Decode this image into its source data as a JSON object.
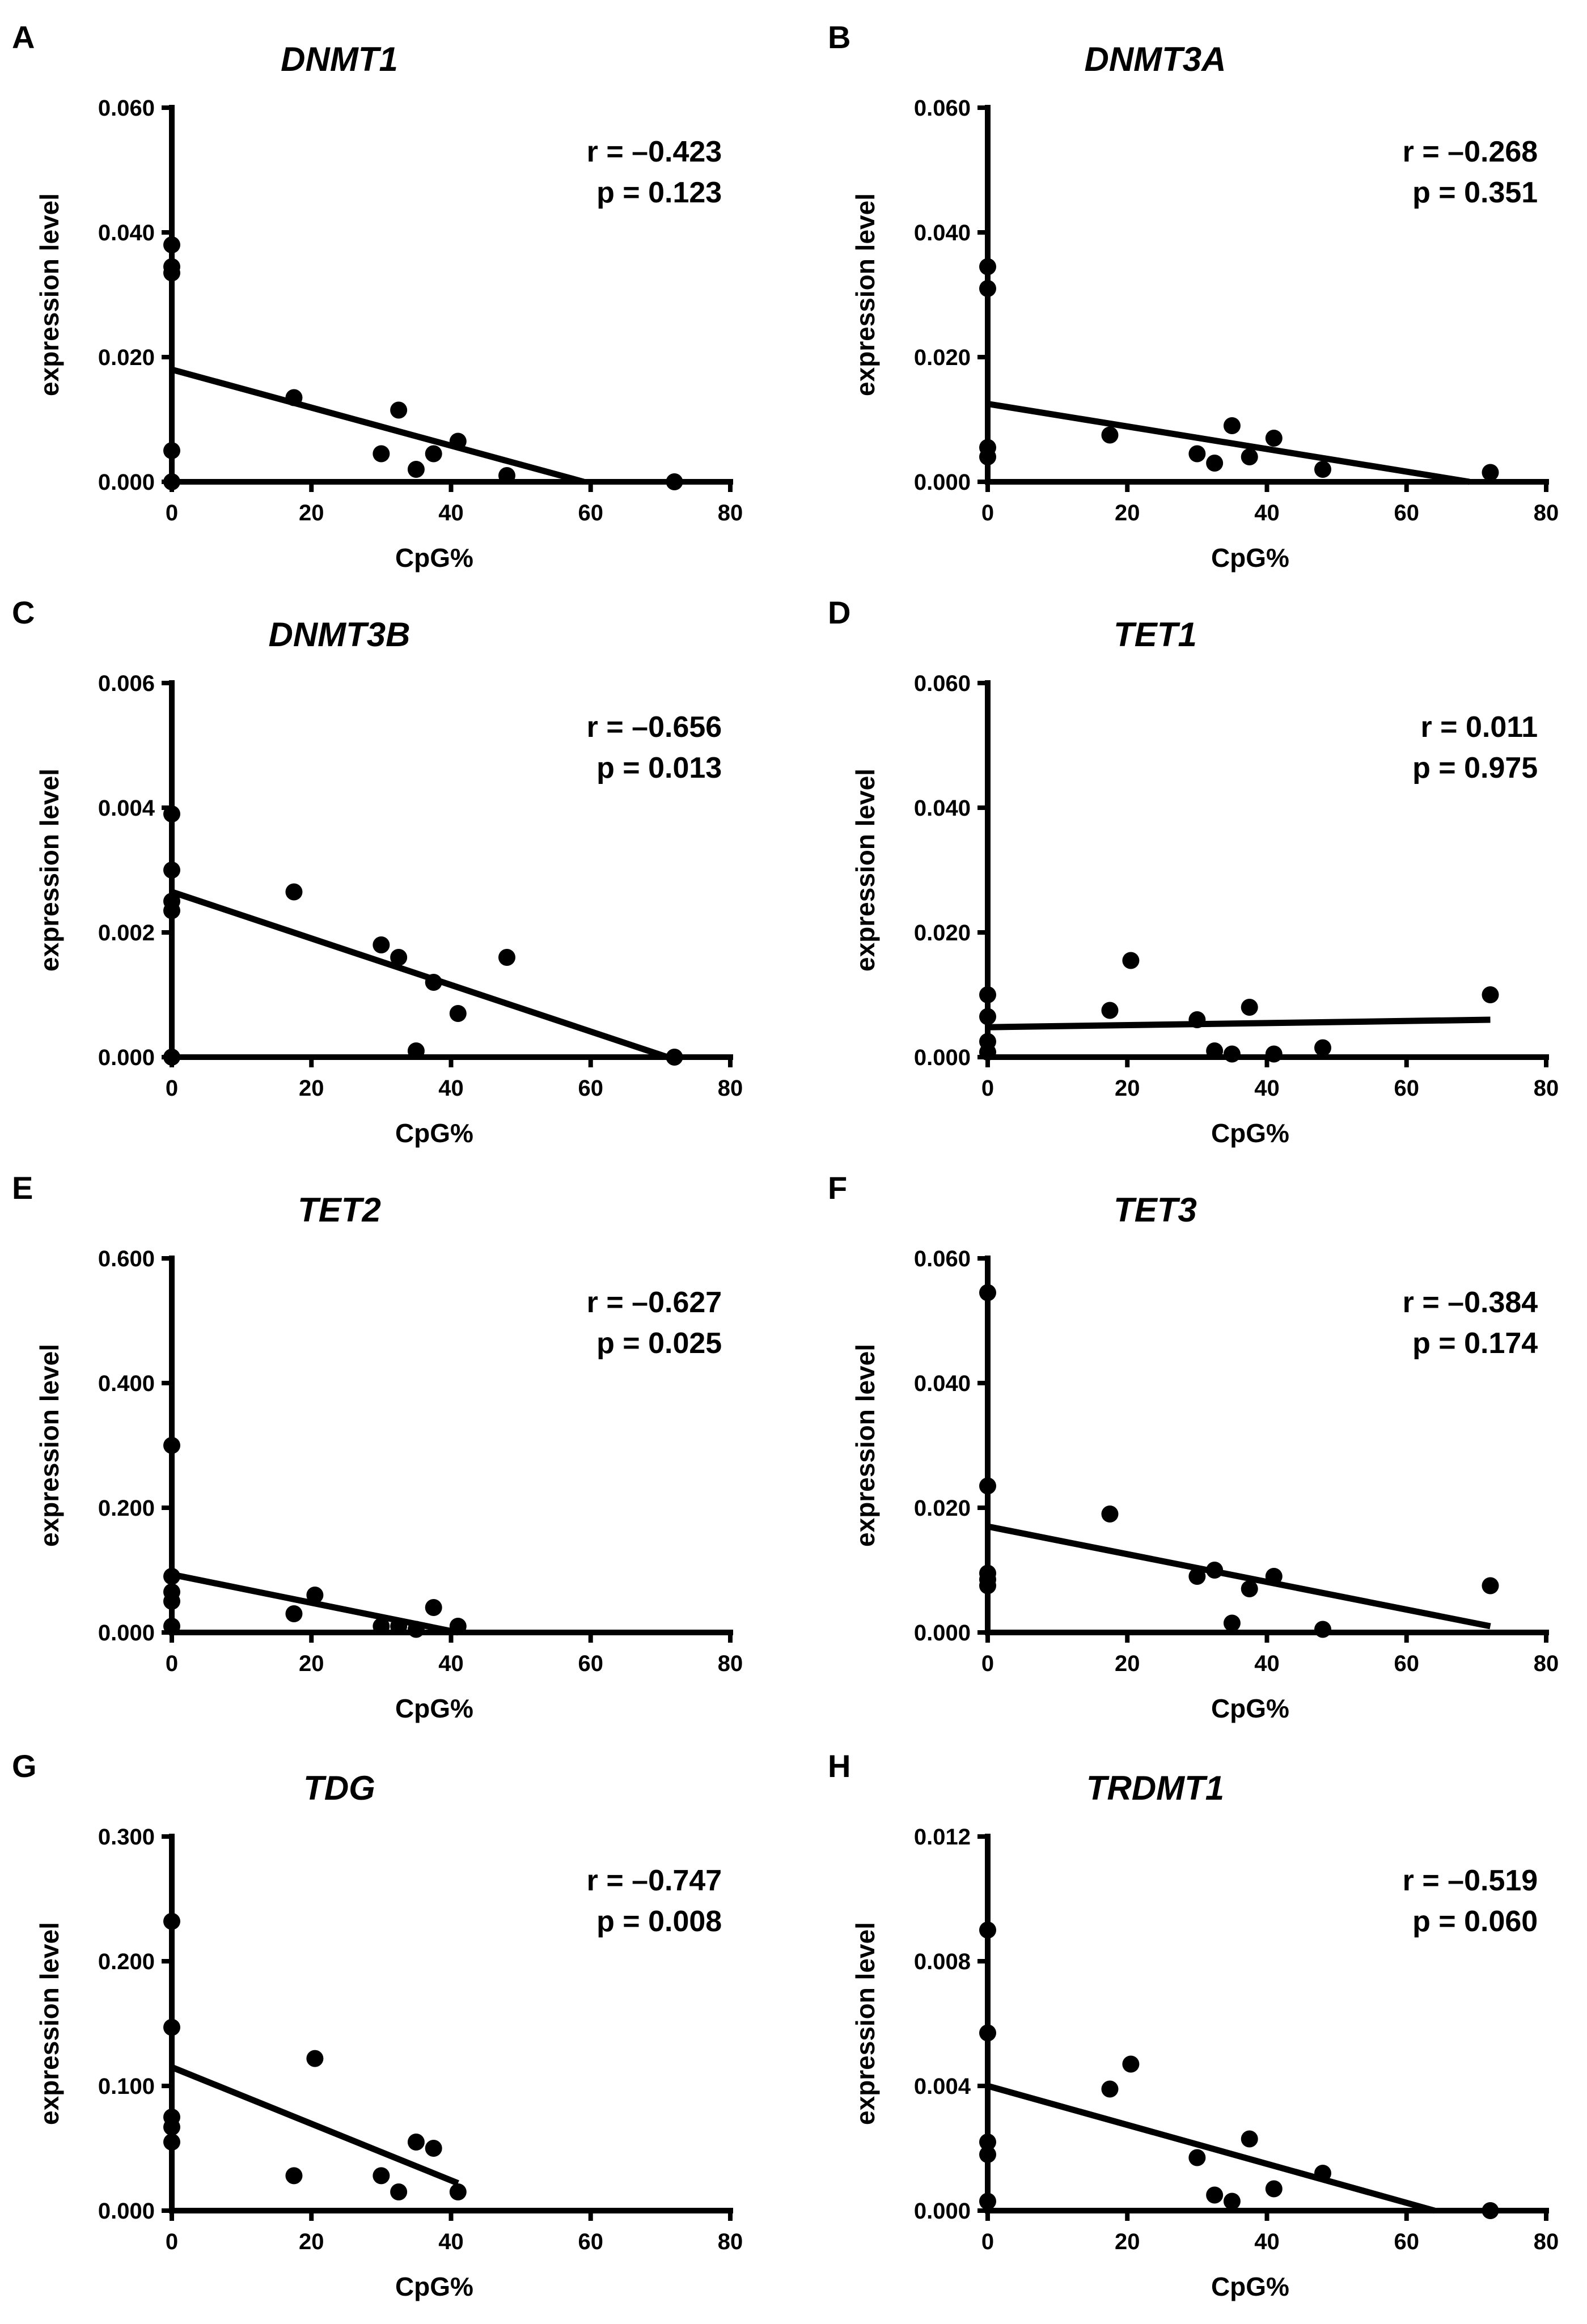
{
  "figure": {
    "panel_count": 8
  },
  "chart_data": [
    {
      "type": "scatter",
      "panel": "A",
      "title": "DNMT1",
      "xlabel": "CpG%",
      "ylabel": "expression level",
      "xlim": [
        0,
        80
      ],
      "ylim": [
        0,
        0.06
      ],
      "xticks": [
        "0",
        "20",
        "40",
        "60",
        "80"
      ],
      "yticks": [
        "0.000",
        "0.020",
        "0.040",
        "0.060"
      ],
      "r_text": "r = –0.423",
      "p_text": "p = 0.123",
      "points": [
        [
          0,
          0.038
        ],
        [
          0,
          0.0345
        ],
        [
          0,
          0.0335
        ],
        [
          0,
          0.005
        ],
        [
          0,
          0.0
        ],
        [
          17.5,
          0.0135
        ],
        [
          30,
          0.0045
        ],
        [
          32.5,
          0.0115
        ],
        [
          35,
          0.002
        ],
        [
          37.5,
          0.0045
        ],
        [
          41,
          0.0065
        ],
        [
          48,
          0.001
        ],
        [
          72,
          0.0
        ]
      ],
      "fit_line": [
        [
          0,
          0.018
        ],
        [
          59,
          0.0
        ]
      ]
    },
    {
      "type": "scatter",
      "panel": "B",
      "title": "DNMT3A",
      "xlabel": "CpG%",
      "ylabel": "expression level",
      "xlim": [
        0,
        80
      ],
      "ylim": [
        0,
        0.06
      ],
      "xticks": [
        "0",
        "20",
        "40",
        "60",
        "80"
      ],
      "yticks": [
        "0.000",
        "0.020",
        "0.040",
        "0.060"
      ],
      "r_text": "r = –0.268",
      "p_text": "p = 0.351",
      "points": [
        [
          0,
          0.0345
        ],
        [
          0,
          0.031
        ],
        [
          0,
          0.0055
        ],
        [
          0,
          0.004
        ],
        [
          17.5,
          0.0075
        ],
        [
          30,
          0.0045
        ],
        [
          32.5,
          0.003
        ],
        [
          35,
          0.009
        ],
        [
          37.5,
          0.004
        ],
        [
          41,
          0.007
        ],
        [
          48,
          0.002
        ],
        [
          72,
          0.0015
        ]
      ],
      "fit_line": [
        [
          0,
          0.0125
        ],
        [
          69,
          0.0
        ]
      ]
    },
    {
      "type": "scatter",
      "panel": "C",
      "title": "DNMT3B",
      "xlabel": "CpG%",
      "ylabel": "expression level",
      "xlim": [
        0,
        80
      ],
      "ylim": [
        0,
        0.006
      ],
      "xticks": [
        "0",
        "20",
        "40",
        "60",
        "80"
      ],
      "yticks": [
        "0.000",
        "0.002",
        "0.004",
        "0.006"
      ],
      "r_text": "r = –0.656",
      "p_text": "p = 0.013",
      "points": [
        [
          0,
          0.0039
        ],
        [
          0,
          0.003
        ],
        [
          0,
          0.0025
        ],
        [
          0,
          0.00235
        ],
        [
          0,
          0.0
        ],
        [
          17.5,
          0.00265
        ],
        [
          30,
          0.0018
        ],
        [
          32.5,
          0.0016
        ],
        [
          35,
          0.0001
        ],
        [
          37.5,
          0.0012
        ],
        [
          41,
          0.0007
        ],
        [
          48,
          0.0016
        ],
        [
          72,
          0.0
        ]
      ],
      "fit_line": [
        [
          0,
          0.00265
        ],
        [
          71,
          0.0
        ]
      ]
    },
    {
      "type": "scatter",
      "panel": "D",
      "title": "TET1",
      "xlabel": "CpG%",
      "ylabel": "expression level",
      "xlim": [
        0,
        80
      ],
      "ylim": [
        0,
        0.06
      ],
      "xticks": [
        "0",
        "20",
        "40",
        "60",
        "80"
      ],
      "yticks": [
        "0.000",
        "0.020",
        "0.040",
        "0.060"
      ],
      "r_text": "r = 0.011",
      "p_text": "p = 0.975",
      "points": [
        [
          0,
          0.01
        ],
        [
          0,
          0.0065
        ],
        [
          0,
          0.0025
        ],
        [
          0,
          0.0008
        ],
        [
          17.5,
          0.0075
        ],
        [
          20.5,
          0.0155
        ],
        [
          30,
          0.006
        ],
        [
          32.5,
          0.001
        ],
        [
          35,
          0.0005
        ],
        [
          37.5,
          0.008
        ],
        [
          41,
          0.0005
        ],
        [
          48,
          0.0015
        ],
        [
          72,
          0.01
        ]
      ],
      "fit_line": [
        [
          0,
          0.0048
        ],
        [
          72,
          0.006
        ]
      ]
    },
    {
      "type": "scatter",
      "panel": "E",
      "title": "TET2",
      "xlabel": "CpG%",
      "ylabel": "expression level",
      "xlim": [
        0,
        80
      ],
      "ylim": [
        0,
        0.6
      ],
      "xticks": [
        "0",
        "20",
        "40",
        "60",
        "80"
      ],
      "yticks": [
        "0.000",
        "0.200",
        "0.400",
        "0.600"
      ],
      "r_text": "r = –0.627",
      "p_text": "p = 0.025",
      "points": [
        [
          0,
          0.3
        ],
        [
          0,
          0.09
        ],
        [
          0,
          0.065
        ],
        [
          0,
          0.05
        ],
        [
          0,
          0.01
        ],
        [
          17.5,
          0.03
        ],
        [
          20.5,
          0.06
        ],
        [
          30,
          0.01
        ],
        [
          32.5,
          0.01
        ],
        [
          35,
          0.005
        ],
        [
          37.5,
          0.04
        ],
        [
          41,
          0.01
        ]
      ],
      "fit_line": [
        [
          0,
          0.093
        ],
        [
          41,
          0.0
        ]
      ]
    },
    {
      "type": "scatter",
      "panel": "F",
      "title": "TET3",
      "xlabel": "CpG%",
      "ylabel": "expression level",
      "xlim": [
        0,
        80
      ],
      "ylim": [
        0,
        0.06
      ],
      "xticks": [
        "0",
        "20",
        "40",
        "60",
        "80"
      ],
      "yticks": [
        "0.000",
        "0.020",
        "0.040",
        "0.060"
      ],
      "r_text": "r = –0.384",
      "p_text": "p = 0.174",
      "points": [
        [
          0,
          0.0545
        ],
        [
          0,
          0.0235
        ],
        [
          0,
          0.0095
        ],
        [
          0,
          0.0085
        ],
        [
          0,
          0.0075
        ],
        [
          17.5,
          0.019
        ],
        [
          30,
          0.009
        ],
        [
          32.5,
          0.01
        ],
        [
          35,
          0.0015
        ],
        [
          37.5,
          0.007
        ],
        [
          41,
          0.009
        ],
        [
          48,
          0.0005
        ],
        [
          72,
          0.0075
        ]
      ],
      "fit_line": [
        [
          0,
          0.017
        ],
        [
          72,
          0.001
        ]
      ]
    },
    {
      "type": "scatter",
      "panel": "G",
      "title": "TDG",
      "xlabel": "CpG%",
      "ylabel": "expression level",
      "xlim": [
        0,
        80
      ],
      "ylim": [
        0,
        0.3
      ],
      "xticks": [
        "0",
        "20",
        "40",
        "60",
        "80"
      ],
      "yticks": [
        "0.000",
        "0.100",
        "0.200",
        "0.300"
      ],
      "r_text": "r = –0.747",
      "p_text": "p = 0.008",
      "points": [
        [
          0,
          0.232
        ],
        [
          0,
          0.147
        ],
        [
          0,
          0.075
        ],
        [
          0,
          0.067
        ],
        [
          0,
          0.055
        ],
        [
          17.5,
          0.028
        ],
        [
          20.5,
          0.122
        ],
        [
          30,
          0.028
        ],
        [
          32.5,
          0.015
        ],
        [
          35,
          0.055
        ],
        [
          37.5,
          0.05
        ],
        [
          41,
          0.015
        ]
      ],
      "fit_line": [
        [
          0,
          0.115
        ],
        [
          41,
          0.022
        ]
      ]
    },
    {
      "type": "scatter",
      "panel": "H",
      "title": "TRDMT1",
      "xlabel": "CpG%",
      "ylabel": "expression level",
      "xlim": [
        0,
        80
      ],
      "ylim": [
        0,
        0.012
      ],
      "xticks": [
        "0",
        "20",
        "40",
        "60",
        "80"
      ],
      "yticks": [
        "0.000",
        "0.004",
        "0.008",
        "0.012"
      ],
      "r_text": "r = –0.519",
      "p_text": "p = 0.060",
      "points": [
        [
          0,
          0.009
        ],
        [
          0,
          0.0057
        ],
        [
          0,
          0.0022
        ],
        [
          0,
          0.0018
        ],
        [
          0,
          0.0003
        ],
        [
          17.5,
          0.0039
        ],
        [
          20.5,
          0.0047
        ],
        [
          30,
          0.0017
        ],
        [
          32.5,
          0.0005
        ],
        [
          35,
          0.0003
        ],
        [
          37.5,
          0.0023
        ],
        [
          41,
          0.0007
        ],
        [
          48,
          0.0012
        ],
        [
          72,
          0.0
        ]
      ],
      "fit_line": [
        [
          0,
          0.004
        ],
        [
          64,
          0.0
        ]
      ]
    }
  ]
}
